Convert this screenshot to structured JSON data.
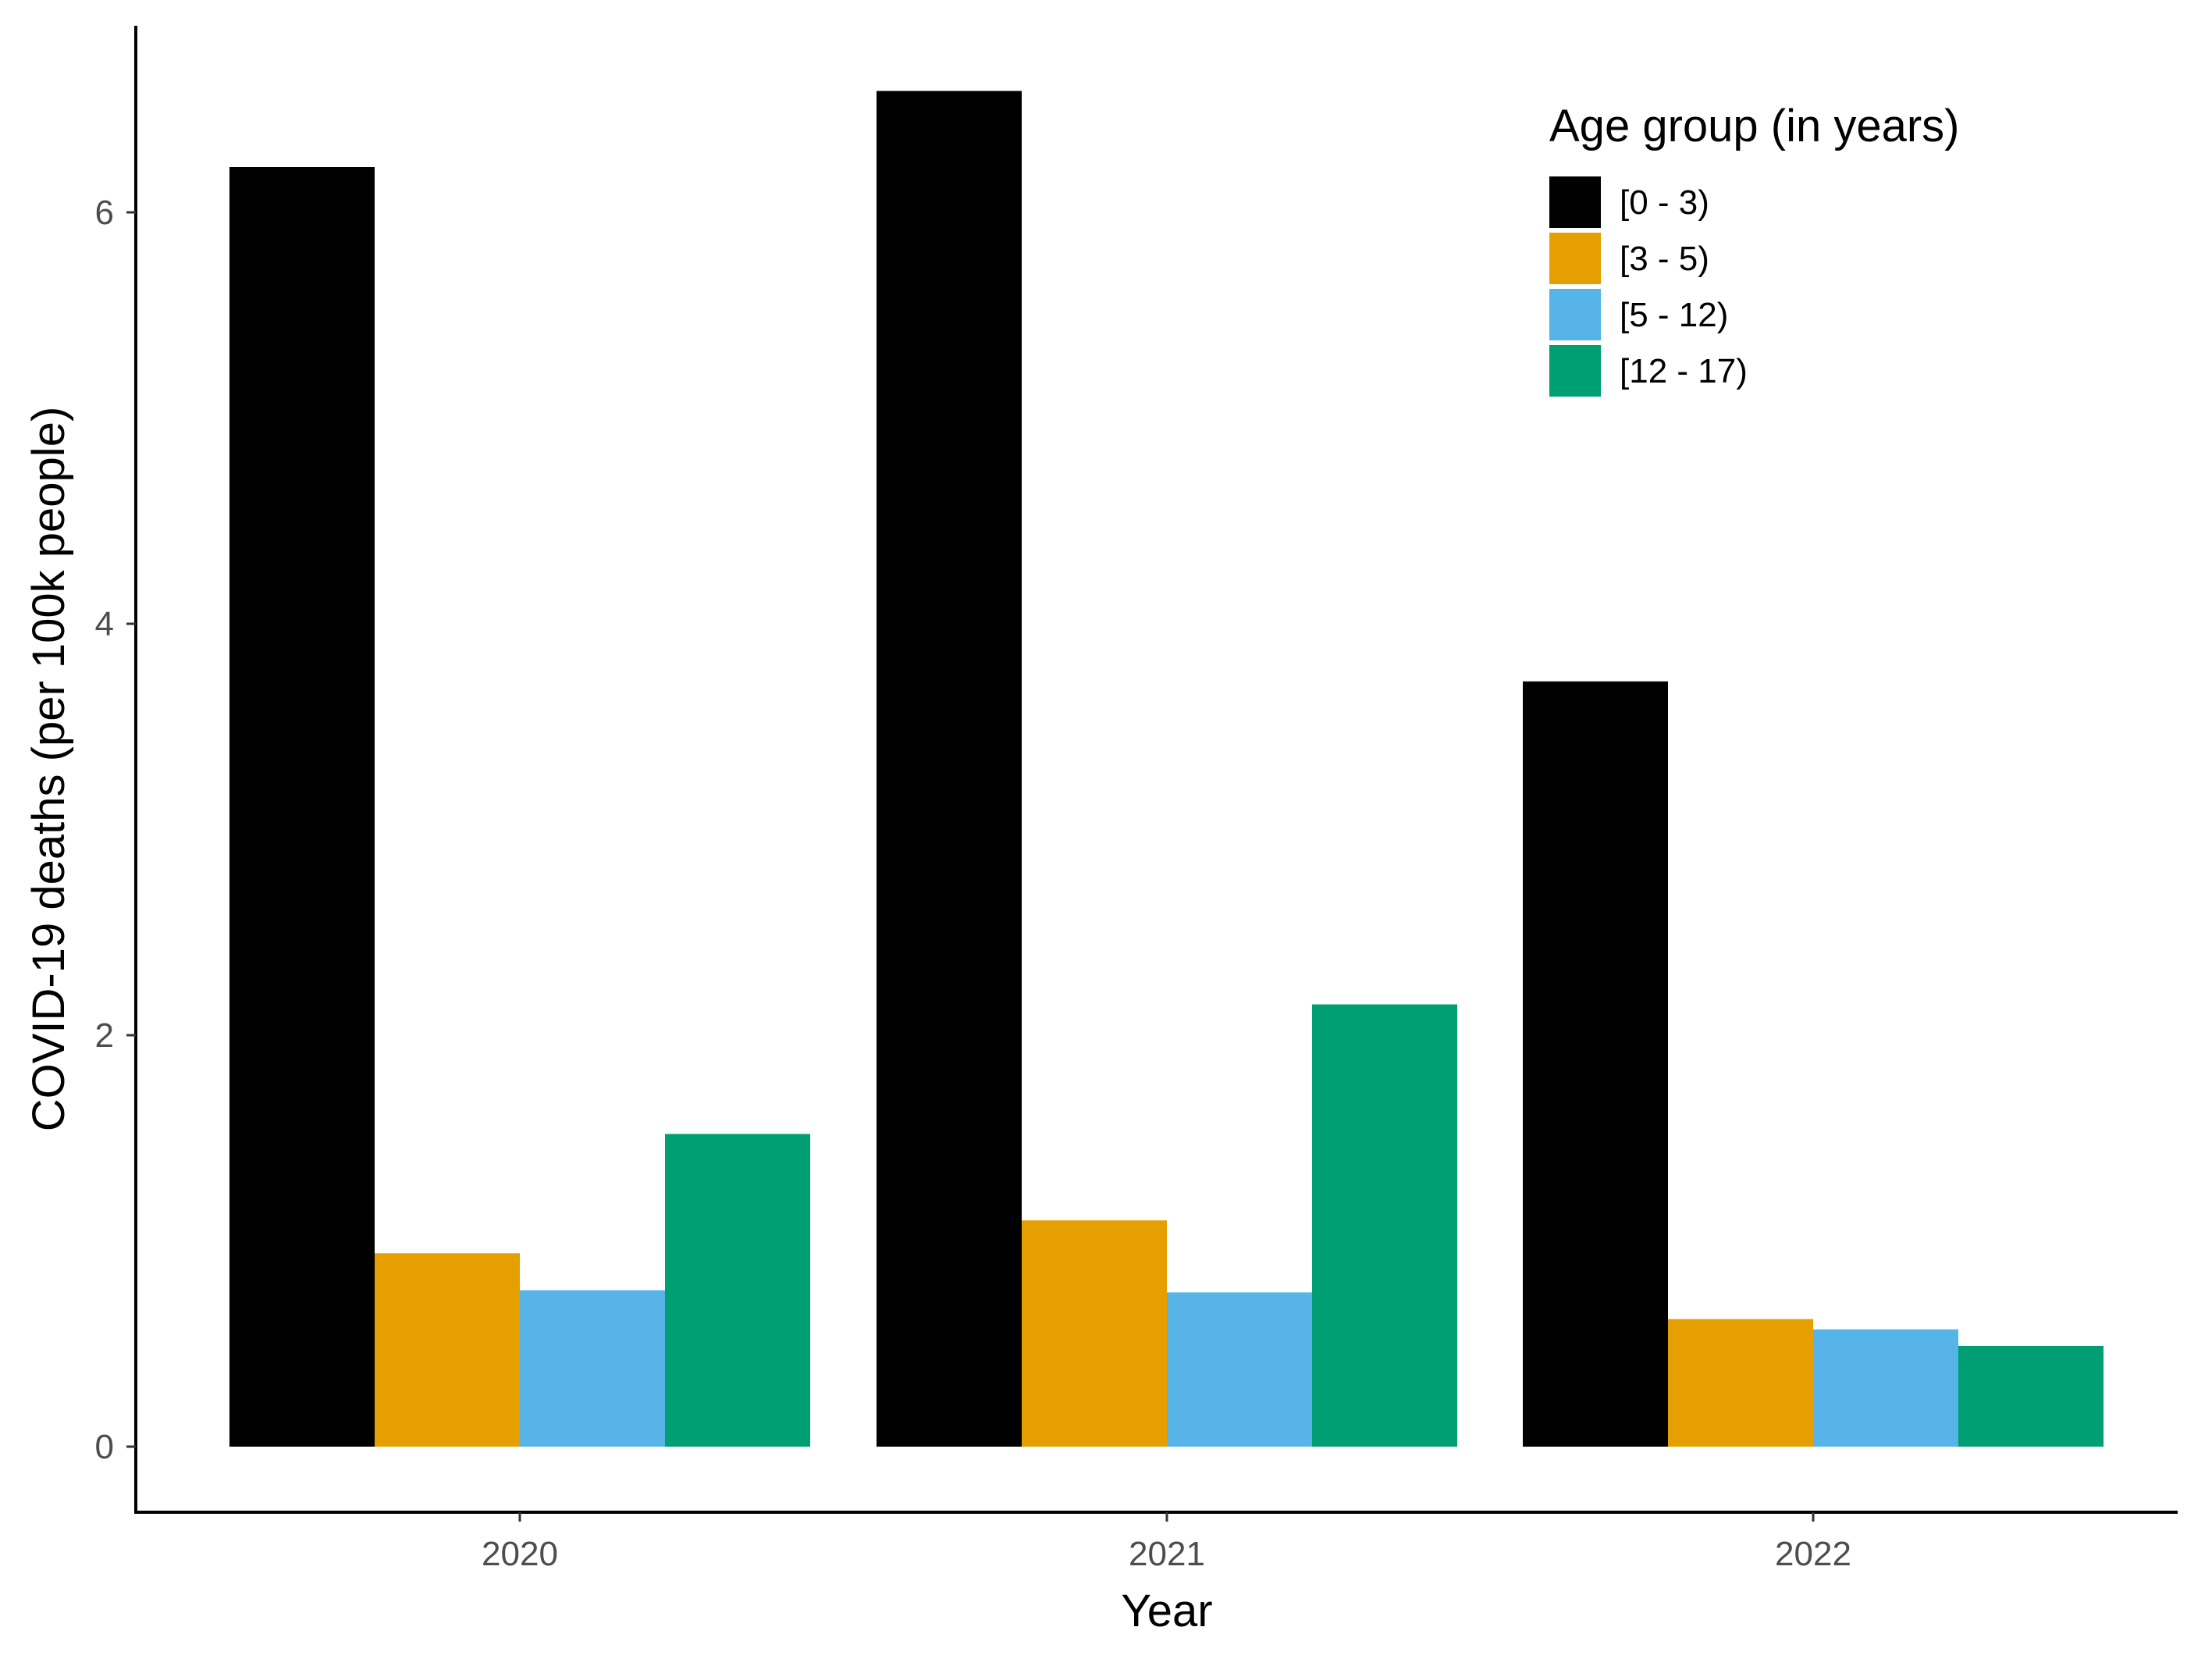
{
  "chart_data": {
    "type": "bar",
    "title": "",
    "xlabel": "Year",
    "ylabel": "COVID-19 deaths (per 100k people)",
    "categories": [
      "2020",
      "2021",
      "2022"
    ],
    "y_ticks": [
      "0",
      "2",
      "4",
      "6"
    ],
    "ylim": [
      -0.32,
      6.9
    ],
    "grid": false,
    "legend": {
      "title": "Age group (in years)",
      "placement": "top-right"
    },
    "series": [
      {
        "name": "[0 - 3)",
        "color": "#000000",
        "values": [
          6.22,
          6.59,
          3.72
        ]
      },
      {
        "name": "[3 - 5)",
        "color": "#E69F00",
        "values": [
          0.94,
          1.1,
          0.62
        ]
      },
      {
        "name": "[5 - 12)",
        "color": "#56B4E9",
        "values": [
          0.76,
          0.75,
          0.57
        ]
      },
      {
        "name": "[12 - 17)",
        "color": "#009E73",
        "values": [
          1.52,
          2.15,
          0.49
        ]
      }
    ]
  }
}
